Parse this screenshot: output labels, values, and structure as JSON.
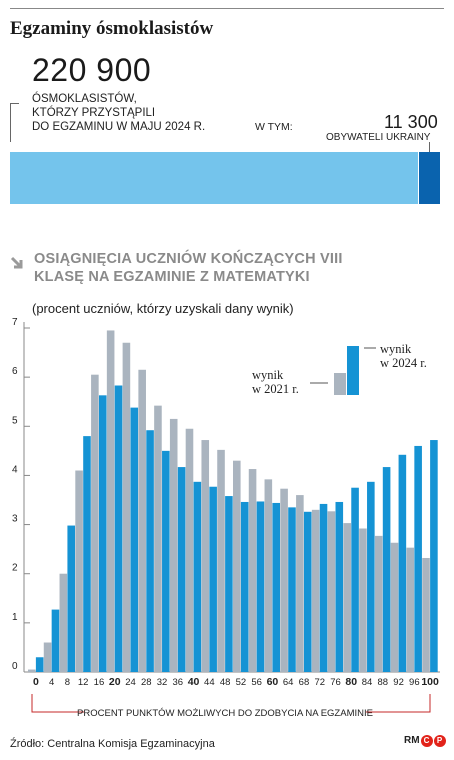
{
  "header": {
    "title": "Egzaminy ósmoklasistów",
    "total_number": "220 900",
    "total_desc": "ÓSMOKLASISTÓW,\nKTÓRZY PRZYSTĄPILI\nDO EGZAMINU W MAJU 2024 R.",
    "in_which": "W TYM:",
    "ukr_number": "11 300",
    "ukr_label": "OBYWATELI UKRAINY"
  },
  "chart_data": {
    "type": "bar",
    "title": "OSIĄGNIĘCIA UCZNIÓW KOŃCZĄCYCH VIII KLASĘ NA EGZAMINIE Z MATEMATYKI",
    "ylabel": "(procent uczniów, którzy uzyskali dany wynik)",
    "xlabel": "PROCENT PUNKTÓW MOŻLIWYCH DO ZDOBYCIA NA EGZAMINIE",
    "ylim": [
      0,
      7
    ],
    "yticks": [
      "0",
      "1",
      "2",
      "3",
      "4",
      "5",
      "6",
      "7"
    ],
    "categories": [
      "0",
      "4",
      "8",
      "12",
      "16",
      "20",
      "24",
      "28",
      "32",
      "36",
      "40",
      "44",
      "48",
      "52",
      "56",
      "60",
      "64",
      "68",
      "72",
      "76",
      "80",
      "84",
      "88",
      "92",
      "96",
      "100"
    ],
    "bold_categories": [
      "0",
      "20",
      "40",
      "60",
      "80",
      "100"
    ],
    "series": [
      {
        "name": "wynik w 2021 r.",
        "color": "#aab4bf",
        "values": [
          0.05,
          0.6,
          2.0,
          4.1,
          6.05,
          6.95,
          6.7,
          6.15,
          5.42,
          5.15,
          4.95,
          4.72,
          4.52,
          4.3,
          4.13,
          3.92,
          3.73,
          3.6,
          3.3,
          3.27,
          3.03,
          2.92,
          2.77,
          2.63,
          2.53,
          2.32
        ]
      },
      {
        "name": "wynik w 2024 r.",
        "color": "#1593d4",
        "values": [
          0.3,
          1.27,
          2.98,
          4.8,
          5.63,
          5.83,
          5.38,
          4.92,
          4.5,
          4.17,
          3.87,
          3.77,
          3.58,
          3.46,
          3.47,
          3.44,
          3.35,
          3.26,
          3.42,
          3.46,
          3.75,
          3.87,
          4.17,
          4.42,
          4.6,
          4.72
        ]
      }
    ],
    "legend_placement": "top-right"
  },
  "footer": {
    "source": "Źródło: Centralna Komisja Egzaminacyjna",
    "logo_text": "RM",
    "logo_c": "C",
    "logo_p": "P"
  }
}
